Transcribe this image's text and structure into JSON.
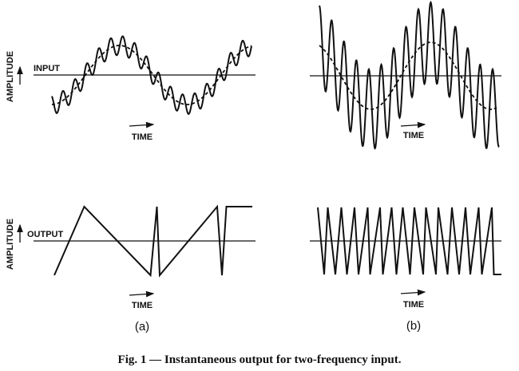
{
  "panels": {
    "a": {
      "input": {
        "axis_label": "AMPLITUDE",
        "signal_label": "INPUT",
        "time_label": "TIME"
      },
      "output": {
        "axis_label": "AMPLITUDE",
        "signal_label": "OUTPUT",
        "time_label": "TIME"
      },
      "label": "(a)"
    },
    "b": {
      "input": {
        "time_label": "TIME"
      },
      "output": {
        "time_label": "TIME"
      },
      "label": "(b)"
    }
  },
  "caption": "Fig. 1 — Instantaneous output for two-frequency input."
}
